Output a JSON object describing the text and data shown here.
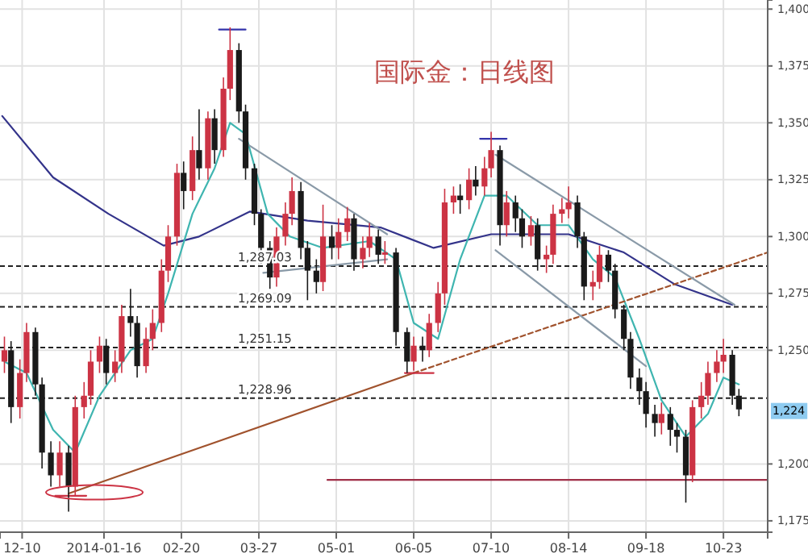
{
  "chart_data": {
    "type": "candlestick",
    "title": "国际金：日线图",
    "grid": true,
    "xlim": [
      "2013-11-30",
      "2014-11-12"
    ],
    "xticks": [
      {
        "value": "2013-12-10",
        "label": "12-10"
      },
      {
        "value": "2014-01-16",
        "label": "2014-01-16"
      },
      {
        "value": "2014-02-20",
        "label": "02-20"
      },
      {
        "value": "2014-03-27",
        "label": "03-27"
      },
      {
        "value": "2014-05-01",
        "label": "05-01"
      },
      {
        "value": "2014-06-05",
        "label": "06-05"
      },
      {
        "value": "2014-07-10",
        "label": "07-10"
      },
      {
        "value": "2014-08-14",
        "label": "08-14"
      },
      {
        "value": "2014-09-18",
        "label": "09-18"
      },
      {
        "value": "2014-10-23",
        "label": "10-23"
      }
    ],
    "ylim": [
      1170,
      1404
    ],
    "yticks": [
      {
        "value": 1175,
        "label": "1,175"
      },
      {
        "value": 1200,
        "label": "1,200"
      },
      {
        "value": 1250,
        "label": "1,250"
      },
      {
        "value": 1275,
        "label": "1,275"
      },
      {
        "value": 1300,
        "label": "1,300"
      },
      {
        "value": 1325,
        "label": "1,325"
      },
      {
        "value": 1350,
        "label": "1,350"
      },
      {
        "value": 1375,
        "label": "1,375"
      },
      {
        "value": 1400,
        "label": "1,400"
      }
    ],
    "ref_lines": [
      {
        "axis": "y",
        "value": 1287.03,
        "label": "1,287.03",
        "line_style": "dashed",
        "color": "#222222"
      },
      {
        "axis": "y",
        "value": 1269.09,
        "label": "1,269.09",
        "line_style": "dashed",
        "color": "#222222"
      },
      {
        "axis": "y",
        "value": 1251.15,
        "label": "1,251.15",
        "line_style": "dashed",
        "color": "#222222"
      },
      {
        "axis": "y",
        "value": 1228.96,
        "label": "1,228.96",
        "line_style": "dashed",
        "color": "#222222"
      }
    ],
    "annotations": [
      {
        "text": "1,224",
        "y": 1224
      }
    ],
    "series": [
      {
        "x": [
          "2013-12-02",
          "2013-12-05",
          "2013-12-09",
          "2013-12-12",
          "2013-12-16",
          "2013-12-19",
          "2013-12-23",
          "2013-12-27",
          "2013-12-31",
          "2014-01-03",
          "2014-01-07",
          "2014-01-10",
          "2014-01-14",
          "2014-01-17",
          "2014-01-21",
          "2014-01-24",
          "2014-01-28",
          "2014-01-31",
          "2014-02-04",
          "2014-02-07",
          "2014-02-11",
          "2014-02-14",
          "2014-02-18",
          "2014-02-21",
          "2014-02-25",
          "2014-02-28",
          "2014-03-04",
          "2014-03-07",
          "2014-03-11",
          "2014-03-14",
          "2014-03-18",
          "2014-03-21",
          "2014-03-25",
          "2014-03-28",
          "2014-04-01",
          "2014-04-04",
          "2014-04-08",
          "2014-04-11",
          "2014-04-15",
          "2014-04-18",
          "2014-04-22",
          "2014-04-25",
          "2014-04-29",
          "2014-05-02",
          "2014-05-06",
          "2014-05-09",
          "2014-05-13",
          "2014-05-16",
          "2014-05-20",
          "2014-05-23",
          "2014-05-28",
          "2014-06-02",
          "2014-06-05",
          "2014-06-09",
          "2014-06-12",
          "2014-06-16",
          "2014-06-19",
          "2014-06-23",
          "2014-06-26",
          "2014-06-30",
          "2014-07-03",
          "2014-07-07",
          "2014-07-10",
          "2014-07-14",
          "2014-07-17",
          "2014-07-21",
          "2014-07-24",
          "2014-07-28",
          "2014-07-31",
          "2014-08-04",
          "2014-08-07",
          "2014-08-11",
          "2014-08-14",
          "2014-08-18",
          "2014-08-21",
          "2014-08-25",
          "2014-08-28",
          "2014-09-01",
          "2014-09-04",
          "2014-09-08",
          "2014-09-11",
          "2014-09-15",
          "2014-09-18",
          "2014-09-22",
          "2014-09-25",
          "2014-09-29",
          "2014-10-02",
          "2014-10-06",
          "2014-10-09",
          "2014-10-13",
          "2014-10-16",
          "2014-10-20",
          "2014-10-23",
          "2014-10-27",
          "2014-10-30"
        ],
        "ohlc": [
          [
            1245,
            1256,
            1240,
            1250
          ],
          [
            1250,
            1254,
            1218,
            1225
          ],
          [
            1225,
            1246,
            1220,
            1240
          ],
          [
            1240,
            1262,
            1236,
            1258
          ],
          [
            1258,
            1260,
            1230,
            1235
          ],
          [
            1235,
            1238,
            1198,
            1205
          ],
          [
            1205,
            1210,
            1190,
            1195
          ],
          [
            1195,
            1210,
            1190,
            1205
          ],
          [
            1205,
            1208,
            1179,
            1190
          ],
          [
            1190,
            1230,
            1186,
            1225
          ],
          [
            1225,
            1236,
            1220,
            1230
          ],
          [
            1230,
            1250,
            1226,
            1245
          ],
          [
            1245,
            1256,
            1240,
            1252
          ],
          [
            1252,
            1255,
            1235,
            1240
          ],
          [
            1240,
            1250,
            1236,
            1245
          ],
          [
            1245,
            1270,
            1240,
            1265
          ],
          [
            1265,
            1277,
            1256,
            1262
          ],
          [
            1262,
            1265,
            1238,
            1243
          ],
          [
            1243,
            1260,
            1240,
            1255
          ],
          [
            1255,
            1268,
            1250,
            1262
          ],
          [
            1262,
            1290,
            1258,
            1285
          ],
          [
            1285,
            1305,
            1280,
            1300
          ],
          [
            1300,
            1332,
            1296,
            1328
          ],
          [
            1328,
            1333,
            1312,
            1320
          ],
          [
            1320,
            1344,
            1316,
            1338
          ],
          [
            1338,
            1356,
            1325,
            1330
          ],
          [
            1330,
            1355,
            1325,
            1352
          ],
          [
            1352,
            1356,
            1332,
            1338
          ],
          [
            1338,
            1370,
            1335,
            1365
          ],
          [
            1365,
            1392,
            1360,
            1382
          ],
          [
            1382,
            1385,
            1350,
            1355
          ],
          [
            1355,
            1358,
            1325,
            1330
          ],
          [
            1330,
            1332,
            1305,
            1310
          ],
          [
            1310,
            1312,
            1288,
            1295
          ],
          [
            1295,
            1298,
            1277,
            1282
          ],
          [
            1282,
            1304,
            1278,
            1300
          ],
          [
            1300,
            1315,
            1296,
            1310
          ],
          [
            1310,
            1326,
            1305,
            1320
          ],
          [
            1320,
            1324,
            1290,
            1295
          ],
          [
            1295,
            1298,
            1272,
            1285
          ],
          [
            1285,
            1290,
            1275,
            1280
          ],
          [
            1280,
            1314,
            1276,
            1300
          ],
          [
            1300,
            1305,
            1290,
            1295
          ],
          [
            1295,
            1308,
            1290,
            1302
          ],
          [
            1302,
            1313,
            1298,
            1308
          ],
          [
            1308,
            1310,
            1285,
            1290
          ],
          [
            1290,
            1300,
            1286,
            1295
          ],
          [
            1295,
            1306,
            1291,
            1300
          ],
          [
            1300,
            1303,
            1288,
            1292
          ],
          [
            1292,
            1298,
            1288,
            1293
          ],
          [
            1293,
            1295,
            1252,
            1258
          ],
          [
            1258,
            1260,
            1240,
            1245
          ],
          [
            1245,
            1256,
            1241,
            1252
          ],
          [
            1252,
            1256,
            1245,
            1250
          ],
          [
            1250,
            1266,
            1247,
            1262
          ],
          [
            1262,
            1280,
            1258,
            1275
          ],
          [
            1275,
            1321,
            1270,
            1315
          ],
          [
            1315,
            1322,
            1310,
            1318
          ],
          [
            1318,
            1323,
            1310,
            1316
          ],
          [
            1316,
            1330,
            1312,
            1325
          ],
          [
            1325,
            1331,
            1318,
            1322
          ],
          [
            1322,
            1335,
            1318,
            1330
          ],
          [
            1330,
            1346,
            1326,
            1338
          ],
          [
            1338,
            1340,
            1296,
            1305
          ],
          [
            1305,
            1320,
            1300,
            1315
          ],
          [
            1315,
            1318,
            1302,
            1308
          ],
          [
            1308,
            1312,
            1295,
            1300
          ],
          [
            1300,
            1309,
            1296,
            1305
          ],
          [
            1305,
            1308,
            1285,
            1290
          ],
          [
            1290,
            1296,
            1284,
            1292
          ],
          [
            1292,
            1314,
            1288,
            1310
          ],
          [
            1310,
            1317,
            1306,
            1312
          ],
          [
            1312,
            1322,
            1308,
            1315
          ],
          [
            1315,
            1318,
            1295,
            1300
          ],
          [
            1300,
            1302,
            1272,
            1278
          ],
          [
            1278,
            1285,
            1272,
            1280
          ],
          [
            1280,
            1296,
            1277,
            1292
          ],
          [
            1292,
            1294,
            1280,
            1285
          ],
          [
            1285,
            1288,
            1264,
            1268
          ],
          [
            1268,
            1270,
            1250,
            1255
          ],
          [
            1255,
            1258,
            1233,
            1238
          ],
          [
            1238,
            1242,
            1226,
            1232
          ],
          [
            1232,
            1236,
            1216,
            1222
          ],
          [
            1222,
            1226,
            1212,
            1218
          ],
          [
            1218,
            1227,
            1213,
            1222
          ],
          [
            1222,
            1225,
            1208,
            1215
          ],
          [
            1215,
            1218,
            1205,
            1212
          ],
          [
            1212,
            1215,
            1183,
            1195
          ],
          [
            1195,
            1228,
            1192,
            1225
          ],
          [
            1225,
            1236,
            1220,
            1230
          ],
          [
            1230,
            1245,
            1226,
            1240
          ],
          [
            1240,
            1250,
            1236,
            1245
          ],
          [
            1245,
            1255,
            1240,
            1248
          ],
          [
            1248,
            1250,
            1226,
            1230
          ],
          [
            1230,
            1233,
            1221,
            1224
          ]
        ]
      },
      {
        "type": "line",
        "color": "#33338a",
        "x": [
          "2013-12-01",
          "2013-12-24",
          "2014-01-18",
          "2014-02-12",
          "2014-02-28",
          "2014-03-23",
          "2014-04-18",
          "2014-05-21",
          "2014-06-14",
          "2014-07-10",
          "2014-08-14",
          "2014-09-08",
          "2014-10-01",
          "2014-10-27"
        ],
        "values": [
          1353,
          1326,
          1310,
          1296,
          1300,
          1311,
          1307,
          1304,
          1295,
          1301,
          1301,
          1293,
          1279,
          1270
        ]
      },
      {
        "type": "line",
        "color": "#3fb5b0",
        "x": [
          "2013-12-02",
          "2013-12-12",
          "2013-12-24",
          "2014-01-03",
          "2014-01-14",
          "2014-01-28",
          "2014-02-07",
          "2014-02-14",
          "2014-02-25",
          "2014-03-07",
          "2014-03-14",
          "2014-03-21",
          "2014-03-31",
          "2014-04-10",
          "2014-04-25",
          "2014-05-16",
          "2014-05-28",
          "2014-06-05",
          "2014-06-16",
          "2014-06-26",
          "2014-07-07",
          "2014-07-17",
          "2014-07-31",
          "2014-08-14",
          "2014-08-25",
          "2014-09-04",
          "2014-09-15",
          "2014-09-25",
          "2014-10-06",
          "2014-10-16",
          "2014-10-23",
          "2014-10-30"
        ],
        "values": [
          1245,
          1240,
          1215,
          1205,
          1230,
          1250,
          1255,
          1275,
          1310,
          1330,
          1350,
          1345,
          1310,
          1300,
          1295,
          1298,
          1290,
          1262,
          1255,
          1290,
          1318,
          1318,
          1305,
          1305,
          1290,
          1282,
          1255,
          1228,
          1212,
          1222,
          1238,
          1235
        ]
      },
      {
        "type": "line",
        "color": "#a0522d",
        "x": [
          "2013-12-31",
          "2014-06-05"
        ],
        "values": [
          1187,
          1240
        ]
      },
      {
        "type": "line",
        "color": "#a0522d",
        "line_style": "dashed",
        "x": [
          "2014-06-05",
          "2014-11-12"
        ],
        "values": [
          1240,
          1293
        ]
      },
      {
        "type": "line",
        "color": "#8a9aa8",
        "x": [
          "2014-03-18",
          "2014-05-24"
        ],
        "values": [
          1343,
          1301
        ]
      },
      {
        "type": "line",
        "color": "#8a9aa8",
        "x": [
          "2014-03-29",
          "2014-05-24"
        ],
        "values": [
          1284,
          1290
        ]
      },
      {
        "type": "line",
        "color": "#8a9aa8",
        "x": [
          "2014-07-12",
          "2014-10-28"
        ],
        "values": [
          1336,
          1270
        ]
      },
      {
        "type": "line",
        "color": "#8a9aa8",
        "x": [
          "2014-07-12",
          "2014-09-18"
        ],
        "values": [
          1294,
          1243
        ]
      },
      {
        "type": "line",
        "color": "#a03048",
        "x": [
          "2014-04-27",
          "2014-11-12"
        ],
        "values": [
          1193,
          1193
        ]
      },
      {
        "type": "line",
        "color": "#3333aa",
        "x": [
          "2014-03-09",
          "2014-03-21"
        ],
        "values": [
          1391,
          1391
        ]
      },
      {
        "type": "line",
        "color": "#3333aa",
        "x": [
          "2014-07-05",
          "2014-07-17"
        ],
        "values": [
          1343,
          1343
        ]
      },
      {
        "type": "line",
        "color": "#cc3344",
        "x": [
          "2013-12-25",
          "2014-01-08"
        ],
        "values": [
          1186,
          1186
        ]
      },
      {
        "type": "line",
        "color": "#cc3344",
        "x": [
          "2014-06-01",
          "2014-06-14"
        ],
        "values": [
          1240,
          1240
        ]
      }
    ]
  }
}
